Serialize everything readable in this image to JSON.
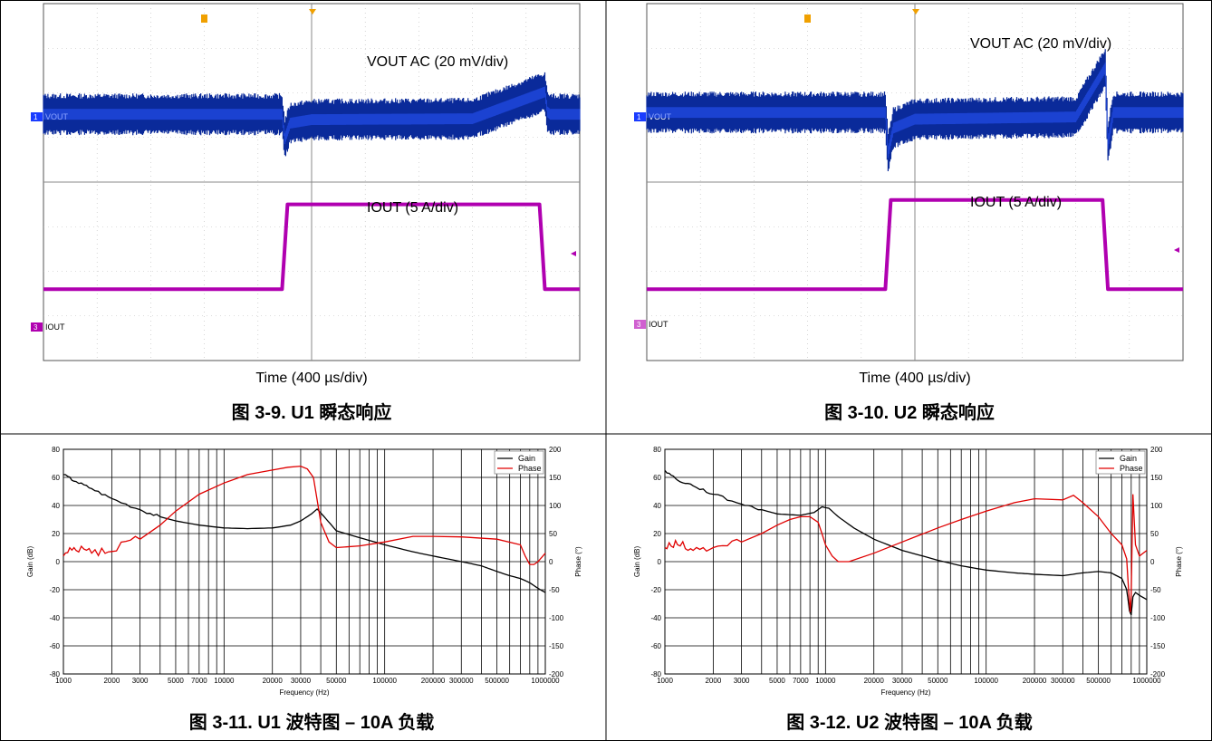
{
  "panels": [
    {
      "caption": "图 3-9. U1 瞬态响应",
      "vout_label": "VOUT AC (20 mV/div)",
      "iout_label": "IOUT (5 A/div)",
      "time_label": "Time (400 µs/div)",
      "ch1_tag": "VOUT",
      "ch3_tag": "IOUT",
      "ch1_num": "1",
      "ch3_num": "3"
    },
    {
      "caption": "图 3-10. U2 瞬态响应",
      "vout_label": "VOUT AC (20 mV/div)",
      "iout_label": "IOUT (5 A/div)",
      "time_label": "Time (400 µs/div)",
      "ch1_tag": "VOUT",
      "ch3_tag": "IOUT",
      "ch1_num": "1",
      "ch3_num": "3"
    },
    {
      "caption": "图 3-11. U1 波特图 – 10A 负载",
      "xlabel": "Frequency (Hz)",
      "ylabel_left": "Gain (dB)",
      "ylabel_right": "Phase (°)"
    },
    {
      "caption": "图 3-12. U2 波特图 – 10A 负载",
      "xlabel": "Frequency (Hz)",
      "ylabel_left": "Gain (dB)",
      "ylabel_right": "Phase (°)"
    }
  ],
  "colors": {
    "vout": "#0a2a9a",
    "vout_bright": "#2a55ff",
    "iout": "#b000b0",
    "gain": "#000000",
    "phase": "#e00000",
    "trigger": "#f0a000"
  },
  "chart_data": [
    {
      "type": "line",
      "title": "",
      "xlabel": "Time (400 µs/div)",
      "series": [
        {
          "name": "VOUT AC (20 mV/div)",
          "x_div": [
            0,
            4.45,
            4.5,
            4.6,
            5,
            8,
            9.35,
            9.4,
            9.45,
            10
          ],
          "y_div": [
            0,
            0,
            -0.55,
            -0.2,
            -0.12,
            -0.1,
            0.5,
            0.05,
            0,
            0
          ]
        },
        {
          "name": "IOUT (5 A/div)",
          "x_div": [
            0,
            4.45,
            4.55,
            9.25,
            9.35,
            10
          ],
          "y_div": [
            0,
            0,
            1.9,
            1.9,
            0,
            0
          ]
        }
      ],
      "xlim_div": [
        0,
        10
      ],
      "ylim_div": [
        -4,
        4
      ]
    },
    {
      "type": "line",
      "title": "",
      "xlabel": "Time (400 µs/div)",
      "series": [
        {
          "name": "VOUT AC (20 mV/div)",
          "x_div": [
            0,
            4.45,
            4.5,
            4.6,
            5,
            8,
            8.55,
            8.6,
            8.7,
            10
          ],
          "y_div": [
            0,
            0,
            -0.9,
            -0.35,
            -0.15,
            -0.1,
            1.0,
            -0.7,
            0,
            0
          ]
        },
        {
          "name": "IOUT (5 A/div)",
          "x_div": [
            0,
            4.45,
            4.55,
            8.5,
            8.6,
            10
          ],
          "y_div": [
            0,
            0,
            2.0,
            2.0,
            0,
            0
          ]
        }
      ],
      "xlim_div": [
        0,
        10
      ],
      "ylim_div": [
        -4,
        4
      ]
    },
    {
      "type": "line",
      "title": "",
      "xlabel": "Frequency (Hz)",
      "ylabel": "Gain (dB)",
      "y2label": "Phase (°)",
      "xscale": "log",
      "xlim": [
        1000,
        1000000
      ],
      "ylim": [
        -80,
        80
      ],
      "y2lim": [
        -200,
        200
      ],
      "x_ticks": [
        1000,
        2000,
        3000,
        5000,
        7000,
        10000,
        20000,
        30000,
        50000,
        100000,
        200000,
        300000,
        500000,
        1000000
      ],
      "x_tick_labels": [
        "1000",
        "2000",
        "3000",
        "5000",
        "7000",
        "10000",
        "20000",
        "30000",
        "50000",
        "100000",
        "200000",
        "300000",
        "500000",
        "1000000"
      ],
      "y_ticks": [
        80,
        60,
        40,
        20,
        0,
        -20,
        -40,
        -60,
        -80
      ],
      "y2_ticks": [
        200,
        150,
        100,
        50,
        0,
        -50,
        -100,
        -150,
        -200
      ],
      "legend": "top-right",
      "grid": true,
      "series": [
        {
          "name": "Gain",
          "axis": "left",
          "x": [
            1000,
            1200,
            1500,
            2000,
            3000,
            4000,
            5000,
            7000,
            10000,
            14000,
            20000,
            26000,
            30000,
            35000,
            38000,
            42000,
            50000,
            70000,
            100000,
            150000,
            200000,
            300000,
            400000,
            500000,
            600000,
            700000,
            800000,
            900000,
            1000000
          ],
          "y": [
            62,
            57,
            52,
            45,
            37,
            32,
            29,
            26,
            24,
            23.5,
            24,
            26,
            29,
            34,
            37.5,
            32,
            22,
            17,
            12,
            7,
            4,
            0,
            -3,
            -7,
            -10,
            -12,
            -15,
            -19,
            -22
          ]
        },
        {
          "name": "Phase",
          "axis": "right",
          "x": [
            1000,
            1200,
            1500,
            2000,
            3000,
            4000,
            5000,
            7000,
            10000,
            14000,
            20000,
            25000,
            30000,
            33000,
            36000,
            38000,
            40000,
            45000,
            50000,
            70000,
            100000,
            150000,
            200000,
            300000,
            500000,
            700000,
            750000,
            800000,
            850000,
            900000,
            1000000
          ],
          "y": [
            10,
            20,
            15,
            18,
            40,
            65,
            90,
            120,
            140,
            155,
            163,
            168,
            170,
            165,
            150,
            110,
            70,
            35,
            25,
            28,
            35,
            45,
            45,
            44,
            40,
            30,
            10,
            -5,
            -5,
            0,
            15
          ]
        }
      ]
    },
    {
      "type": "line",
      "title": "",
      "xlabel": "Frequency (Hz)",
      "ylabel": "Gain (dB)",
      "y2label": "Phase (°)",
      "xscale": "log",
      "xlim": [
        1000,
        1000000
      ],
      "ylim": [
        -80,
        80
      ],
      "y2lim": [
        -200,
        200
      ],
      "x_ticks": [
        1000,
        2000,
        3000,
        5000,
        7000,
        10000,
        20000,
        30000,
        50000,
        100000,
        200000,
        300000,
        500000,
        1000000
      ],
      "x_tick_labels": [
        "1000",
        "2000",
        "3000",
        "5000",
        "7000",
        "10000",
        "20000",
        "30000",
        "50000",
        "100000",
        "200000",
        "300000",
        "500000",
        "1000000"
      ],
      "y_ticks": [
        80,
        60,
        40,
        20,
        0,
        -20,
        -40,
        -60,
        -80
      ],
      "y2_ticks": [
        200,
        150,
        100,
        50,
        0,
        -50,
        -100,
        -150,
        -200
      ],
      "legend": "top-right",
      "grid": true,
      "series": [
        {
          "name": "Gain",
          "axis": "left",
          "x": [
            1000,
            1200,
            1500,
            2000,
            3000,
            4000,
            5000,
            7000,
            8500,
            9500,
            10500,
            12000,
            15000,
            20000,
            30000,
            50000,
            70000,
            100000,
            150000,
            200000,
            300000,
            400000,
            500000,
            600000,
            700000,
            750000,
            780000,
            800000,
            820000,
            850000,
            900000,
            1000000
          ],
          "y": [
            65,
            58,
            54,
            48,
            41,
            37,
            34,
            33,
            35,
            39,
            38,
            32,
            24,
            16,
            8,
            1,
            -3,
            -6,
            -8,
            -9,
            -10,
            -8,
            -7,
            -8,
            -12,
            -20,
            -35,
            -38,
            -25,
            -22,
            -24,
            -27
          ]
        },
        {
          "name": "Phase",
          "axis": "right",
          "x": [
            1000,
            1200,
            1500,
            2000,
            3000,
            4000,
            5000,
            6000,
            7000,
            8000,
            9000,
            9500,
            10000,
            11000,
            12000,
            14000,
            20000,
            30000,
            50000,
            70000,
            100000,
            150000,
            200000,
            300000,
            350000,
            400000,
            500000,
            600000,
            700000,
            750000,
            770000,
            790000,
            800000,
            820000,
            850000,
            900000,
            1000000
          ],
          "y": [
            25,
            30,
            20,
            25,
            35,
            50,
            65,
            75,
            80,
            80,
            70,
            50,
            30,
            10,
            0,
            0,
            15,
            35,
            60,
            75,
            90,
            105,
            112,
            110,
            118,
            105,
            80,
            50,
            30,
            5,
            -50,
            -90,
            -60,
            120,
            30,
            10,
            20
          ]
        }
      ]
    }
  ]
}
